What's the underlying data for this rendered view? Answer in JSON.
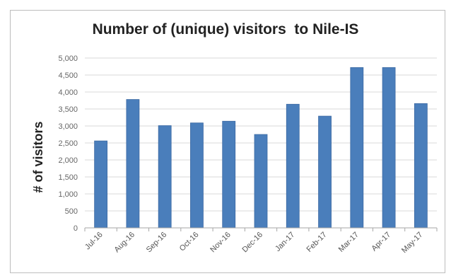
{
  "chart_data": {
    "type": "bar",
    "title": "Number of (unique) visitors  to Nile-IS",
    "xlabel": "",
    "ylabel": "# of visitors",
    "categories": [
      "Jul-16",
      "Aug-16",
      "Sep-16",
      "Oct-16",
      "Nov-16",
      "Dec-16",
      "Jan-17",
      "Feb-17",
      "Mar-17",
      "Apr-17",
      "May-17"
    ],
    "values": [
      2560,
      3780,
      3010,
      3090,
      3140,
      2750,
      3640,
      3290,
      4720,
      4720,
      3660
    ],
    "ylim": [
      0,
      5000
    ],
    "yticks": [
      0,
      500,
      1000,
      1500,
      2000,
      2500,
      3000,
      3500,
      4000,
      4500,
      5000
    ],
    "ytick_labels": [
      "0",
      "500",
      "1,000",
      "1,500",
      "2,000",
      "2,500",
      "3,000",
      "3,500",
      "4,000",
      "4,500",
      "5,000"
    ],
    "grid": true,
    "legend": "none",
    "colors": {
      "bar": "#4a7ebb",
      "bar_edge": "#3d6aa3",
      "grid": "#d9d9d9",
      "axis": "#a6a6a6"
    }
  }
}
